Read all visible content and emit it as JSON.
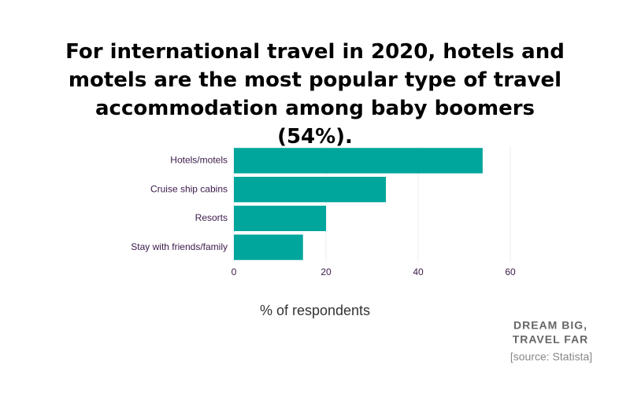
{
  "chart_data": {
    "type": "bar",
    "orientation": "horizontal",
    "title": "For international travel in 2020, hotels and motels are the most popular type of travel accommodation among baby boomers (54%).",
    "categories": [
      "Hotels/motels",
      "Cruise ship cabins",
      "Resorts",
      "Stay with friends/family"
    ],
    "values": [
      54,
      33,
      20,
      15
    ],
    "color": "#00a69c",
    "xlabel": "% of respondents",
    "xlim": [
      0,
      60
    ],
    "xticks": [
      0,
      20,
      40,
      60
    ],
    "grid": true
  },
  "footer": {
    "brand": [
      "DREAM BIG,",
      "TRAVEL FAR"
    ],
    "source": "[source: Statista]"
  }
}
